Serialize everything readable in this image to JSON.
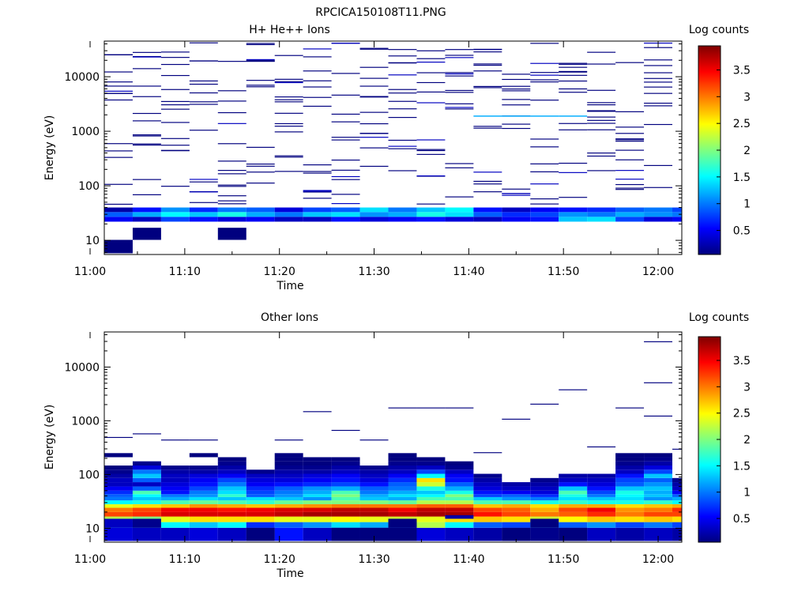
{
  "figure": {
    "title": "RPCICA150108T11.PNG"
  },
  "colormap": {
    "name": "jet",
    "stops": [
      "#00007f",
      "#0000ff",
      "#007fff",
      "#00ffff",
      "#7fff7f",
      "#ffff00",
      "#ff7f00",
      "#ff0000",
      "#7f0000"
    ]
  },
  "chart_data": [
    {
      "type": "heatmap",
      "title": "H+ He++ Ions",
      "xlabel": "Time",
      "ylabel": "Energy (eV)",
      "xscale": "time",
      "yscale": "log",
      "xlim": [
        "11:01:30",
        "12:02:30"
      ],
      "ylim": [
        5.5,
        45000
      ],
      "xticks": [
        "11:00",
        "11:10",
        "11:20",
        "11:30",
        "11:40",
        "11:50",
        "12:00"
      ],
      "yticks": [
        "10",
        "100",
        "1000",
        "10000"
      ],
      "colorbar": {
        "label": "Log counts",
        "range": [
          0.05,
          3.95
        ],
        "ticks": [
          "0.5",
          "1",
          "1.5",
          "2",
          "2.5",
          "3",
          "3.5"
        ],
        "position": "right"
      },
      "time_bins": [
        "11:01:30",
        "11:04:30",
        "11:07:30",
        "11:10:30",
        "11:13:30",
        "11:16:30",
        "11:19:30",
        "11:22:30",
        "11:25:30",
        "11:28:30",
        "11:31:30",
        "11:34:30",
        "11:37:30",
        "11:40:30",
        "11:43:30",
        "11:46:30",
        "11:49:30",
        "11:52:30",
        "11:55:30",
        "11:58:30",
        "12:01:30",
        "12:02:30"
      ],
      "energy_bins": [
        5.8,
        10.2,
        17.0,
        22.0,
        27.0,
        33.0,
        40.0,
        45.0
      ],
      "cells": [
        {
          "t": 0,
          "e": 0,
          "v": 0.05
        },
        {
          "t": 1,
          "e": 1,
          "v": 0.05
        },
        {
          "t": 4,
          "e": 1,
          "v": 0.05
        },
        {
          "t": 0,
          "e": 3,
          "v": 0.5
        },
        {
          "t": 0,
          "e": 4,
          "v": 0.9
        },
        {
          "t": 0,
          "e": 5,
          "v": 0.2
        },
        {
          "t": 1,
          "e": 3,
          "v": 0.3
        },
        {
          "t": 1,
          "e": 4,
          "v": 1.2
        },
        {
          "t": 1,
          "e": 5,
          "v": 0.6
        },
        {
          "t": 2,
          "e": 3,
          "v": 0.8
        },
        {
          "t": 2,
          "e": 4,
          "v": 1.5
        },
        {
          "t": 2,
          "e": 5,
          "v": 1.1
        },
        {
          "t": 3,
          "e": 3,
          "v": 0.6
        },
        {
          "t": 3,
          "e": 4,
          "v": 1.3
        },
        {
          "t": 3,
          "e": 5,
          "v": 0.7
        },
        {
          "t": 4,
          "e": 3,
          "v": 0.4
        },
        {
          "t": 4,
          "e": 4,
          "v": 1.6
        },
        {
          "t": 4,
          "e": 5,
          "v": 1.0
        },
        {
          "t": 5,
          "e": 3,
          "v": 0.5
        },
        {
          "t": 5,
          "e": 4,
          "v": 1.2
        },
        {
          "t": 5,
          "e": 5,
          "v": 0.9
        },
        {
          "t": 6,
          "e": 3,
          "v": 0.3
        },
        {
          "t": 6,
          "e": 4,
          "v": 1.0
        },
        {
          "t": 6,
          "e": 5,
          "v": 0.4
        },
        {
          "t": 7,
          "e": 3,
          "v": 0.3
        },
        {
          "t": 7,
          "e": 4,
          "v": 1.3
        },
        {
          "t": 7,
          "e": 5,
          "v": 0.8
        },
        {
          "t": 8,
          "e": 3,
          "v": 0.6
        },
        {
          "t": 8,
          "e": 4,
          "v": 1.4
        },
        {
          "t": 8,
          "e": 5,
          "v": 0.9
        },
        {
          "t": 9,
          "e": 3,
          "v": 0.4
        },
        {
          "t": 9,
          "e": 4,
          "v": 1.1
        },
        {
          "t": 9,
          "e": 5,
          "v": 1.4
        },
        {
          "t": 10,
          "e": 3,
          "v": 0.5
        },
        {
          "t": 10,
          "e": 4,
          "v": 1.2
        },
        {
          "t": 10,
          "e": 5,
          "v": 1.0
        },
        {
          "t": 11,
          "e": 3,
          "v": 0.6
        },
        {
          "t": 11,
          "e": 4,
          "v": 1.6
        },
        {
          "t": 11,
          "e": 5,
          "v": 1.3
        },
        {
          "t": 12,
          "e": 3,
          "v": 0.4
        },
        {
          "t": 12,
          "e": 4,
          "v": 1.4
        },
        {
          "t": 12,
          "e": 5,
          "v": 1.5
        },
        {
          "t": 13,
          "e": 3,
          "v": 0.3
        },
        {
          "t": 13,
          "e": 4,
          "v": 0.9
        },
        {
          "t": 13,
          "e": 5,
          "v": 0.6
        },
        {
          "t": 14,
          "e": 3,
          "v": 0.5
        },
        {
          "t": 14,
          "e": 4,
          "v": 0.7
        },
        {
          "t": 14,
          "e": 5,
          "v": 0.3
        },
        {
          "t": 15,
          "e": 3,
          "v": 0.6
        },
        {
          "t": 15,
          "e": 4,
          "v": 0.8
        },
        {
          "t": 15,
          "e": 5,
          "v": 0.5
        },
        {
          "t": 16,
          "e": 3,
          "v": 1.3
        },
        {
          "t": 16,
          "e": 4,
          "v": 1.1
        },
        {
          "t": 16,
          "e": 5,
          "v": 0.6
        },
        {
          "t": 17,
          "e": 3,
          "v": 1.4
        },
        {
          "t": 17,
          "e": 4,
          "v": 1.0
        },
        {
          "t": 17,
          "e": 5,
          "v": 0.7
        },
        {
          "t": 18,
          "e": 3,
          "v": 0.8
        },
        {
          "t": 18,
          "e": 4,
          "v": 1.2
        },
        {
          "t": 18,
          "e": 5,
          "v": 0.9
        },
        {
          "t": 19,
          "e": 3,
          "v": 0.4
        },
        {
          "t": 19,
          "e": 4,
          "v": 1.1
        },
        {
          "t": 19,
          "e": 5,
          "v": 1.0
        },
        {
          "t": 20,
          "e": 3,
          "v": 0.5
        },
        {
          "t": 20,
          "e": 4,
          "v": 1.0
        },
        {
          "t": 20,
          "e": 5,
          "v": 0.8
        }
      ],
      "scattered_counts": {
        "value": 0.05,
        "energy_range": [
          45,
          42000
        ],
        "per_bin": 14,
        "seed": 7
      },
      "ridge": {
        "from_bin": 13,
        "to_bin": 16,
        "energy": 1850,
        "value": 1.2
      }
    },
    {
      "type": "heatmap",
      "title": "Other Ions",
      "xlabel": "Time",
      "ylabel": "Energy (eV)",
      "xscale": "time",
      "yscale": "log",
      "xlim": [
        "11:01:30",
        "12:02:30"
      ],
      "ylim": [
        5.5,
        45000
      ],
      "xticks": [
        "11:00",
        "11:10",
        "11:20",
        "11:30",
        "11:40",
        "11:50",
        "12:00"
      ],
      "yticks": [
        "10",
        "100",
        "1000",
        "10000"
      ],
      "colorbar": {
        "label": "Log counts",
        "range": [
          0.05,
          3.95
        ],
        "ticks": [
          "0.5",
          "1",
          "1.5",
          "2",
          "2.5",
          "3",
          "3.5"
        ],
        "position": "right"
      },
      "time_bins": [
        "11:01:30",
        "11:04:30",
        "11:07:30",
        "11:10:30",
        "11:13:30",
        "11:16:30",
        "11:19:30",
        "11:22:30",
        "11:25:30",
        "11:28:30",
        "11:31:30",
        "11:34:30",
        "11:37:30",
        "11:40:30",
        "11:43:30",
        "11:46:30",
        "11:49:30",
        "11:52:30",
        "11:55:30",
        "11:58:30",
        "12:01:30",
        "12:02:30"
      ],
      "energy_bins": [
        5.8,
        10.2,
        13.0,
        16.5,
        20.0,
        24.0,
        28.0,
        33.0,
        38.0,
        43.0,
        50.0,
        60.0,
        72.0,
        86.0,
        103.0,
        123.0,
        147.0,
        176.0,
        210.0,
        250.0,
        300.0
      ],
      "profile": [
        [
          0.4,
          0.3,
          0.3,
          0.4,
          0.3,
          0.5,
          0.6,
          0.3,
          0.4,
          0.3,
          0.6,
          0.4,
          0.3,
          0.2,
          0.3,
          0.1,
          0.2,
          0.3,
          0.2,
          0.3,
          0.2
        ],
        [
          1.2,
          1.0,
          1.5,
          1.3,
          1.5,
          0.7,
          0.9,
          1.1,
          1.4,
          1.2,
          1.0,
          2.2,
          1.5,
          0.9,
          0.8,
          1.0,
          0.9,
          1.1,
          0.8,
          1.0,
          0.8
        ],
        [
          2.2,
          2.0,
          2.4,
          2.6,
          2.6,
          2.6,
          2.4,
          2.4,
          2.5,
          2.4,
          2.3,
          2.4,
          2.6,
          2.7,
          2.6,
          2.3,
          2.5,
          2.7,
          2.6,
          2.7,
          2.6
        ],
        [
          3.2,
          3.3,
          3.6,
          3.6,
          3.6,
          3.6,
          3.7,
          3.8,
          3.8,
          3.8,
          3.7,
          3.8,
          3.8,
          3.4,
          3.2,
          3.0,
          3.1,
          3.3,
          3.0,
          3.2,
          3.2
        ],
        [
          3.0,
          3.2,
          3.5,
          3.5,
          3.4,
          3.5,
          3.6,
          3.6,
          3.7,
          3.7,
          3.5,
          3.7,
          3.7,
          3.2,
          3.1,
          2.8,
          3.2,
          3.5,
          2.9,
          3.0,
          3.3
        ],
        [
          2.4,
          2.6,
          2.7,
          2.9,
          2.8,
          2.7,
          2.8,
          2.9,
          3.0,
          3.0,
          3.0,
          3.1,
          3.1,
          2.7,
          2.8,
          2.6,
          2.8,
          2.8,
          2.6,
          2.7,
          2.8
        ],
        [
          1.5,
          1.6,
          1.8,
          1.9,
          1.8,
          1.7,
          1.9,
          2.0,
          2.0,
          2.0,
          1.9,
          2.2,
          2.2,
          1.8,
          1.8,
          1.6,
          1.7,
          1.6,
          1.6,
          1.7,
          1.5
        ],
        [
          1.0,
          1.3,
          1.2,
          1.4,
          1.3,
          1.4,
          1.3,
          1.1,
          1.8,
          1.3,
          1.2,
          1.8,
          1.8,
          1.3,
          1.1,
          1.0,
          1.4,
          1.3,
          1.4,
          1.1,
          1.2
        ],
        [
          0.9,
          1.5,
          1.0,
          1.1,
          1.7,
          0.9,
          1.1,
          1.4,
          2.0,
          1.2,
          1.4,
          1.5,
          2.0,
          0.8,
          0.9,
          0.7,
          1.6,
          1.0,
          1.5,
          1.3,
          0.9
        ],
        [
          0.7,
          1.8,
          0.6,
          1.0,
          1.4,
          0.8,
          1.0,
          1.2,
          1.8,
          1.0,
          1.2,
          1.3,
          1.6,
          0.6,
          0.5,
          0.4,
          1.8,
          0.8,
          1.6,
          1.2,
          0.5
        ],
        [
          0.5,
          0.9,
          0.5,
          0.8,
          1.3,
          0.7,
          0.9,
          1.1,
          1.2,
          0.9,
          1.0,
          1.6,
          1.2,
          0.4,
          0.3,
          0.3,
          1.3,
          0.6,
          1.3,
          1.3,
          0.3
        ],
        [
          0.3,
          0.3,
          0.4,
          0.6,
          1.0,
          0.5,
          0.6,
          0.7,
          0.8,
          0.6,
          0.9,
          2.3,
          0.9,
          0.3,
          0.2,
          0.2,
          0.6,
          0.4,
          0.9,
          1.1,
          0.2
        ],
        [
          0.3,
          0.9,
          0.3,
          0.5,
          0.8,
          0.4,
          0.4,
          0.5,
          0.6,
          0.4,
          0.7,
          2.6,
          0.6,
          0.2,
          0.0,
          0.1,
          0.3,
          0.3,
          0.8,
          0.9,
          0.1
        ],
        [
          0.2,
          1.3,
          0.3,
          0.4,
          0.5,
          0.3,
          0.3,
          0.4,
          0.5,
          0.3,
          0.5,
          1.5,
          0.5,
          0.1,
          0.0,
          0.0,
          0.2,
          0.2,
          0.6,
          1.3,
          0.0
        ],
        [
          0.1,
          1.0,
          0.2,
          0.2,
          0.3,
          0.1,
          0.2,
          0.2,
          0.3,
          0.2,
          0.3,
          0.8,
          0.3,
          0.0,
          0.0,
          0.0,
          0.0,
          0.0,
          0.3,
          0.8,
          0.0
        ],
        [
          0.05,
          0.4,
          0.1,
          0.1,
          0.2,
          0.0,
          0.1,
          0.1,
          0.2,
          0.1,
          0.2,
          0.3,
          0.1,
          0.0,
          0.0,
          0.0,
          0.0,
          0.0,
          0.2,
          0.4,
          0.0
        ],
        [
          0.0,
          0.1,
          0.0,
          0.0,
          0.1,
          0.0,
          0.05,
          0.05,
          0.1,
          0.0,
          0.1,
          0.1,
          0.05,
          0.0,
          0.0,
          0.0,
          0.0,
          0.0,
          0.1,
          0.2,
          0.0
        ],
        [
          0.0,
          0.0,
          0.0,
          0.0,
          0.05,
          0.0,
          0.05,
          0.05,
          0.05,
          0.0,
          0.05,
          0.05,
          0.0,
          0.0,
          0.0,
          0.0,
          0.0,
          0.0,
          0.05,
          0.1,
          0.0
        ],
        [
          0.05,
          0.0,
          0.0,
          0.05,
          0.0,
          0.0,
          0.05,
          0.0,
          0.0,
          0.0,
          0.05,
          0.0,
          0.0,
          0.0,
          0.0,
          0.0,
          0.0,
          0.0,
          0.05,
          0.05,
          0.0
        ],
        [
          0.0,
          0.0,
          0.0,
          0.0,
          0.0,
          0.0,
          0.0,
          0.0,
          0.0,
          0.0,
          0.0,
          0.0,
          0.0,
          0.0,
          0.0,
          0.0,
          0.0,
          0.0,
          0.0,
          0.0,
          0.0
        ]
      ],
      "extra_cells": [
        {
          "t": 5,
          "e_low": 5.8,
          "e_high": 10.2,
          "v": 0.05
        },
        {
          "t": 8,
          "e_low": 5.8,
          "e_high": 10.2,
          "v": 0.05
        },
        {
          "t": 9,
          "e_low": 5.8,
          "e_high": 10.2,
          "v": 0.05
        },
        {
          "t": 10,
          "e_low": 5.8,
          "e_high": 10.2,
          "v": 0.05
        },
        {
          "t": 14,
          "e_low": 5.8,
          "e_high": 10.2,
          "v": 0.05
        },
        {
          "t": 16,
          "e_low": 5.8,
          "e_high": 10.2,
          "v": 0.05
        },
        {
          "t": 15,
          "e_low": 10.2,
          "e_high": 15.0,
          "v": 0.05
        },
        {
          "t": 10,
          "e_low": 10.2,
          "e_high": 15.0,
          "v": 0.05
        },
        {
          "t": 0,
          "e_low": 10.2,
          "e_high": 15.0,
          "v": 0.3
        },
        {
          "t": 1,
          "e_low": 10.2,
          "e_high": 15.0,
          "v": 0.1
        },
        {
          "t": 12,
          "e_low": 15.0,
          "e_high": 17.5,
          "v": 0.2
        }
      ],
      "scattered_counts": [
        {
          "t": 1,
          "e": 560,
          "v": 0.05
        },
        {
          "t": 7,
          "e": 1450,
          "v": 0.05
        },
        {
          "t": 8,
          "e": 650,
          "v": 0.05
        },
        {
          "t": 10,
          "e": 1700,
          "v": 0.05
        },
        {
          "t": 11,
          "e": 1700,
          "v": 0.05
        },
        {
          "t": 12,
          "e": 1700,
          "v": 0.05
        },
        {
          "t": 14,
          "e": 1050,
          "v": 0.05
        },
        {
          "t": 15,
          "e": 2000,
          "v": 0.05
        },
        {
          "t": 16,
          "e": 3700,
          "v": 0.05
        },
        {
          "t": 18,
          "e": 1700,
          "v": 0.05
        },
        {
          "t": 19,
          "e": 29000,
          "v": 0.05
        },
        {
          "t": 19,
          "e": 5000,
          "v": 0.05
        },
        {
          "t": 19,
          "e": 1200,
          "v": 0.05
        },
        {
          "t": 20,
          "e": 290,
          "v": 0.05
        },
        {
          "t": 13,
          "e": 250,
          "v": 0.05
        },
        {
          "t": 0,
          "e": 480,
          "v": 0.05
        },
        {
          "t": 2,
          "e": 430,
          "v": 0.05
        },
        {
          "t": 3,
          "e": 430,
          "v": 0.05
        },
        {
          "t": 6,
          "e": 430,
          "v": 0.05
        },
        {
          "t": 9,
          "e": 430,
          "v": 0.05
        },
        {
          "t": 17,
          "e": 320,
          "v": 0.05
        }
      ]
    }
  ]
}
